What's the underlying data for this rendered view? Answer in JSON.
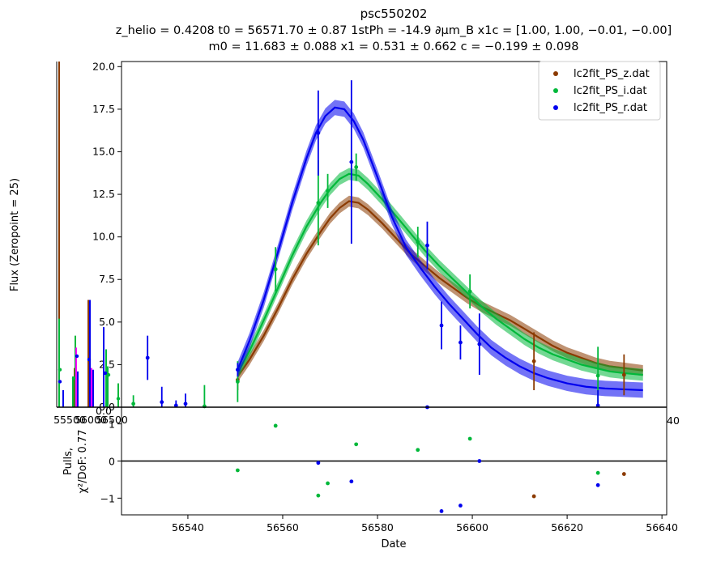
{
  "chart_data": [
    {
      "type": "line",
      "title": "psc550202",
      "subtitle_line1": "z_helio = 0.4208 t0 = 56571.70 ± 0.87 1stPh = -14.9 ∂μm_B x1c = [1.00, 1.00, −0.01, −0.00]",
      "subtitle_line2": "m0 = 11.683 ± 0.088 x1 = 0.531 ± 0.662 c = −0.199 ± 0.098",
      "ylabel": "Flux (Zeropoint = 25)",
      "xlim": [
        56526,
        56641
      ],
      "ylim": [
        0,
        20.3
      ],
      "yticks": [
        "0.0",
        "2.5",
        "5.0",
        "7.5",
        "10.0",
        "12.5",
        "15.0",
        "17.5",
        "20.0"
      ],
      "ytick_values": [
        0,
        2.5,
        5,
        7.5,
        10,
        12.5,
        15,
        17.5,
        20
      ],
      "x_overlap_ticks": [
        "55500",
        "56000",
        "56500"
      ],
      "x_overlap_partial": "0.0",
      "x_last_tick": "40",
      "legend_position": "top-right",
      "colors": {
        "z": "#8B3A00",
        "i": "#00B83A",
        "r": "#0000EE"
      },
      "series": [
        {
          "name": "lc2fit_PS_z.dat",
          "key": "z",
          "model_x": [
            56550.5,
            56553,
            56556,
            56559,
            56562,
            56565,
            56568,
            56570,
            56572,
            56574,
            56576,
            56578,
            56581,
            56584,
            56587,
            56590,
            56593,
            56596,
            56599,
            56602,
            56605,
            56608,
            56611,
            56614,
            56617,
            56620,
            56623,
            56626,
            56629,
            56632,
            56636
          ],
          "model_y": [
            1.8,
            2.8,
            4.2,
            5.8,
            7.5,
            9.0,
            10.3,
            11.1,
            11.7,
            12.1,
            12.0,
            11.6,
            10.8,
            9.9,
            9.0,
            8.3,
            7.6,
            7.0,
            6.4,
            5.9,
            5.5,
            5.1,
            4.6,
            4.1,
            3.6,
            3.2,
            2.9,
            2.6,
            2.4,
            2.3,
            2.15
          ],
          "band": 0.32,
          "points": [
            {
              "x": 56550.5,
              "y": 1.6,
              "err": 0.6
            },
            {
              "x": 56613,
              "y": 2.7,
              "err": 1.7
            },
            {
              "x": 56632,
              "y": 1.9,
              "err": 1.2
            }
          ]
        },
        {
          "name": "lc2fit_PS_i.dat",
          "key": "i",
          "model_x": [
            56550.5,
            56553,
            56556,
            56559,
            56562,
            56565,
            56568,
            56570,
            56572,
            56574,
            56576,
            56578,
            56581,
            56584,
            56587,
            56590,
            56593,
            56596,
            56599,
            56602,
            56605,
            56608,
            56611,
            56614,
            56617,
            56620,
            56623,
            56626,
            56629,
            56632,
            56636
          ],
          "model_y": [
            2.0,
            3.3,
            5.1,
            7.0,
            8.9,
            10.6,
            12.0,
            12.8,
            13.4,
            13.7,
            13.6,
            13.1,
            12.2,
            11.2,
            10.2,
            9.2,
            8.3,
            7.5,
            6.7,
            5.9,
            5.2,
            4.6,
            4.0,
            3.5,
            3.1,
            2.8,
            2.5,
            2.3,
            2.1,
            2.0,
            1.9
          ],
          "band": 0.35,
          "points": [
            {
              "x": 56550.5,
              "y": 1.5,
              "err": 1.2
            },
            {
              "x": 56558.5,
              "y": 8.1,
              "err": 1.3
            },
            {
              "x": 56567.5,
              "y": 12.0,
              "err": 2.5
            },
            {
              "x": 56569.5,
              "y": 12.7,
              "err": 1.0
            },
            {
              "x": 56575.5,
              "y": 14.1,
              "err": 0.8
            },
            {
              "x": 56588.5,
              "y": 9.7,
              "err": 0.9
            },
            {
              "x": 56599.5,
              "y": 6.8,
              "err": 1.0
            },
            {
              "x": 56626.5,
              "y": 1.85,
              "err": 1.7
            }
          ]
        },
        {
          "name": "lc2fit_PS_r.dat",
          "key": "r",
          "model_x": [
            56550.5,
            56553,
            56556,
            56559,
            56562,
            56565,
            56567,
            56569,
            56571,
            56573,
            56575,
            56577,
            56580,
            56583,
            56586,
            56589,
            56592,
            56595,
            56598,
            56601,
            56604,
            56607,
            56610,
            56613,
            56616,
            56620,
            56624,
            56628,
            56632,
            56636
          ],
          "model_y": [
            2.2,
            3.9,
            6.3,
            9.1,
            12.0,
            14.6,
            16.1,
            17.1,
            17.6,
            17.5,
            16.8,
            15.7,
            13.5,
            11.2,
            9.4,
            8.2,
            7.1,
            6.1,
            5.2,
            4.3,
            3.5,
            2.9,
            2.4,
            2.0,
            1.7,
            1.4,
            1.2,
            1.1,
            1.05,
            1.0
          ],
          "band": 0.45,
          "points": [
            {
              "x": 56531.5,
              "y": 2.9,
              "err": 1.3
            },
            {
              "x": 56534.5,
              "y": 0.3,
              "err": 0.9
            },
            {
              "x": 56537.5,
              "y": 0.1,
              "err": 0.3
            },
            {
              "x": 56539.5,
              "y": 0.2,
              "err": 0.6
            },
            {
              "x": 56550.5,
              "y": 2.2,
              "err": 0.4
            },
            {
              "x": 56567.5,
              "y": 16.1,
              "err": 2.5
            },
            {
              "x": 56574.5,
              "y": 14.4,
              "err": 4.8
            },
            {
              "x": 56590.5,
              "y": 9.5,
              "err": 1.4
            },
            {
              "x": 56593.5,
              "y": 4.8,
              "err": 1.4
            },
            {
              "x": 56597.5,
              "y": 3.8,
              "err": 1.0
            },
            {
              "x": 56601.5,
              "y": 3.7,
              "err": 1.8
            },
            {
              "x": 56626.5,
              "y": 0.1,
              "err": 0.9
            }
          ]
        },
        {
          "name": "",
          "key": "i",
          "points": [
            {
              "x": 56543.5,
              "y": 0.05,
              "err": 1.25
            },
            {
              "x": 56528.5,
              "y": 0.2,
              "err": 0.5
            }
          ]
        }
      ]
    },
    {
      "type": "scatter",
      "xlabel": "Date",
      "ylabel_line1": "Pulls,",
      "ylabel_line2": "χ²/DoF: 0.77",
      "xlim": [
        56526,
        56641
      ],
      "ylim": [
        -1.45,
        1.45
      ],
      "xticks": [
        "56540",
        "56560",
        "56580",
        "56600",
        "56620",
        "56640"
      ],
      "xtick_values": [
        56540,
        56560,
        56580,
        56600,
        56620,
        56640
      ],
      "yticks": [
        "−1",
        "0",
        "1"
      ],
      "ytick_values": [
        -1,
        0,
        1
      ],
      "points": [
        {
          "x": 56550.5,
          "y": -0.25,
          "key": "i"
        },
        {
          "x": 56558.5,
          "y": 0.95,
          "key": "i"
        },
        {
          "x": 56567.5,
          "y": -0.93,
          "key": "i"
        },
        {
          "x": 56569.5,
          "y": -0.6,
          "key": "i"
        },
        {
          "x": 56575.5,
          "y": 0.45,
          "key": "i"
        },
        {
          "x": 56588.5,
          "y": 0.3,
          "key": "i"
        },
        {
          "x": 56599.5,
          "y": 0.6,
          "key": "i"
        },
        {
          "x": 56626.5,
          "y": -0.32,
          "key": "i"
        },
        {
          "x": 56567.5,
          "y": -0.05,
          "key": "r"
        },
        {
          "x": 56574.5,
          "y": -0.55,
          "key": "r"
        },
        {
          "x": 56590.5,
          "y": 1.45,
          "key": "r"
        },
        {
          "x": 56593.5,
          "y": -1.35,
          "key": "r"
        },
        {
          "x": 56597.5,
          "y": -1.2,
          "key": "r"
        },
        {
          "x": 56601.5,
          "y": 0.0,
          "key": "r"
        },
        {
          "x": 56626.5,
          "y": -0.65,
          "key": "r"
        },
        {
          "x": 56613,
          "y": -0.95,
          "key": "z"
        },
        {
          "x": 56632,
          "y": -0.35,
          "key": "z"
        }
      ]
    }
  ]
}
